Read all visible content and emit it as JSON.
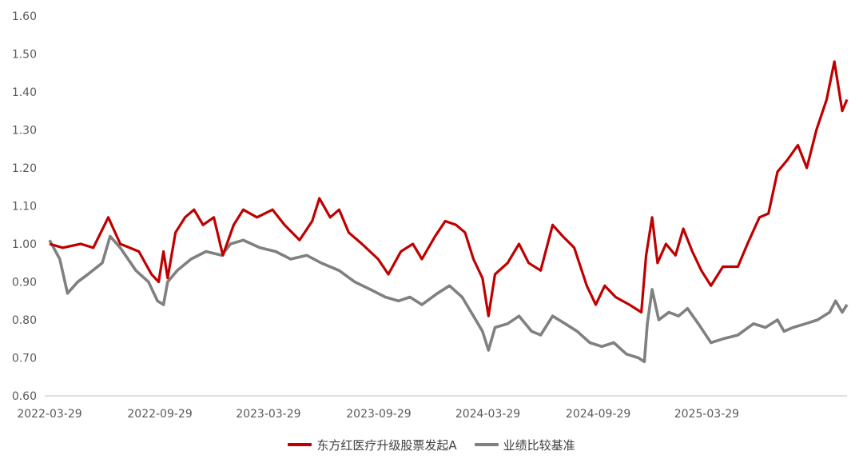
{
  "chart_data": {
    "type": "line",
    "ylim": [
      0.6,
      1.6
    ],
    "y_ticks": [
      "1.60",
      "1.50",
      "1.40",
      "1.30",
      "1.20",
      "1.10",
      "1.00",
      "0.90",
      "0.80",
      "0.70",
      "0.60"
    ],
    "x_ticks": [
      "2022-03-29",
      "2022-09-29",
      "2023-03-29",
      "2023-09-29",
      "2024-03-29",
      "2024-09-29",
      "2025-03-29"
    ],
    "legend_position": "bottom",
    "grid": false,
    "series": [
      {
        "name": "东方红医疗升级股票发起A",
        "color": "#c00000",
        "points": [
          [
            "2022-03-29",
            1.0
          ],
          [
            "2022-04-20",
            0.99
          ],
          [
            "2022-05-20",
            1.0
          ],
          [
            "2022-06-10",
            0.99
          ],
          [
            "2022-07-05",
            1.07
          ],
          [
            "2022-07-25",
            1.0
          ],
          [
            "2022-08-25",
            0.98
          ],
          [
            "2022-09-15",
            0.92
          ],
          [
            "2022-09-27",
            0.9
          ],
          [
            "2022-10-05",
            0.98
          ],
          [
            "2022-10-12",
            0.91
          ],
          [
            "2022-10-25",
            1.03
          ],
          [
            "2022-11-10",
            1.07
          ],
          [
            "2022-11-25",
            1.09
          ],
          [
            "2022-12-10",
            1.05
          ],
          [
            "2022-12-28",
            1.07
          ],
          [
            "2023-01-12",
            0.97
          ],
          [
            "2023-01-30",
            1.05
          ],
          [
            "2023-02-15",
            1.09
          ],
          [
            "2023-03-10",
            1.07
          ],
          [
            "2023-04-05",
            1.09
          ],
          [
            "2023-04-25",
            1.05
          ],
          [
            "2023-05-20",
            1.01
          ],
          [
            "2023-06-10",
            1.06
          ],
          [
            "2023-06-22",
            1.12
          ],
          [
            "2023-07-10",
            1.07
          ],
          [
            "2023-07-25",
            1.09
          ],
          [
            "2023-08-10",
            1.03
          ],
          [
            "2023-09-01",
            1.0
          ],
          [
            "2023-09-28",
            0.96
          ],
          [
            "2023-10-15",
            0.92
          ],
          [
            "2023-11-05",
            0.98
          ],
          [
            "2023-11-25",
            1.0
          ],
          [
            "2023-12-10",
            0.96
          ],
          [
            "2024-01-01",
            1.02
          ],
          [
            "2024-01-18",
            1.06
          ],
          [
            "2024-02-05",
            1.05
          ],
          [
            "2024-02-20",
            1.03
          ],
          [
            "2024-03-05",
            0.96
          ],
          [
            "2024-03-20",
            0.91
          ],
          [
            "2024-03-30",
            0.81
          ],
          [
            "2024-04-10",
            0.92
          ],
          [
            "2024-05-01",
            0.95
          ],
          [
            "2024-05-20",
            1.0
          ],
          [
            "2024-06-05",
            0.95
          ],
          [
            "2024-06-25",
            0.93
          ],
          [
            "2024-07-15",
            1.05
          ],
          [
            "2024-08-01",
            1.02
          ],
          [
            "2024-08-20",
            0.99
          ],
          [
            "2024-09-10",
            0.89
          ],
          [
            "2024-09-25",
            0.84
          ],
          [
            "2024-10-10",
            0.89
          ],
          [
            "2024-10-28",
            0.86
          ],
          [
            "2024-11-20",
            0.84
          ],
          [
            "2024-12-10",
            0.82
          ],
          [
            "2024-12-18",
            0.97
          ],
          [
            "2024-12-28",
            1.07
          ],
          [
            "2025-01-06",
            0.95
          ],
          [
            "2025-01-20",
            1.0
          ],
          [
            "2025-02-05",
            0.97
          ],
          [
            "2025-02-18",
            1.04
          ],
          [
            "2025-03-05",
            0.98
          ],
          [
            "2025-03-20",
            0.93
          ],
          [
            "2025-04-05",
            0.89
          ],
          [
            "2025-04-25",
            0.94
          ],
          [
            "2025-05-20",
            0.94
          ],
          [
            "2025-06-05",
            1.0
          ],
          [
            "2025-06-25",
            1.07
          ],
          [
            "2025-07-10",
            1.08
          ],
          [
            "2025-07-25",
            1.19
          ],
          [
            "2025-08-10",
            1.22
          ],
          [
            "2025-08-28",
            1.26
          ],
          [
            "2025-09-12",
            1.2
          ],
          [
            "2025-09-28",
            1.3
          ],
          [
            "2025-10-15",
            1.38
          ],
          [
            "2025-10-28",
            1.48
          ],
          [
            "2025-11-10",
            1.35
          ],
          [
            "2025-11-18",
            1.38
          ]
        ]
      },
      {
        "name": "业绩比较基准",
        "color": "#808080",
        "points": [
          [
            "2022-03-29",
            1.01
          ],
          [
            "2022-04-15",
            0.96
          ],
          [
            "2022-04-28",
            0.87
          ],
          [
            "2022-05-15",
            0.9
          ],
          [
            "2022-06-01",
            0.92
          ],
          [
            "2022-06-25",
            0.95
          ],
          [
            "2022-07-08",
            1.02
          ],
          [
            "2022-07-25",
            0.99
          ],
          [
            "2022-08-20",
            0.93
          ],
          [
            "2022-09-10",
            0.9
          ],
          [
            "2022-09-25",
            0.85
          ],
          [
            "2022-10-05",
            0.84
          ],
          [
            "2022-10-12",
            0.9
          ],
          [
            "2022-10-28",
            0.93
          ],
          [
            "2022-11-20",
            0.96
          ],
          [
            "2022-12-15",
            0.98
          ],
          [
            "2023-01-10",
            0.97
          ],
          [
            "2023-01-25",
            1.0
          ],
          [
            "2023-02-15",
            1.01
          ],
          [
            "2023-03-15",
            0.99
          ],
          [
            "2023-04-10",
            0.98
          ],
          [
            "2023-05-05",
            0.96
          ],
          [
            "2023-06-01",
            0.97
          ],
          [
            "2023-06-25",
            0.95
          ],
          [
            "2023-07-25",
            0.93
          ],
          [
            "2023-08-20",
            0.9
          ],
          [
            "2023-09-15",
            0.88
          ],
          [
            "2023-10-10",
            0.86
          ],
          [
            "2023-11-01",
            0.85
          ],
          [
            "2023-11-20",
            0.86
          ],
          [
            "2023-12-10",
            0.84
          ],
          [
            "2024-01-05",
            0.87
          ],
          [
            "2024-01-25",
            0.89
          ],
          [
            "2024-02-15",
            0.86
          ],
          [
            "2024-03-05",
            0.81
          ],
          [
            "2024-03-20",
            0.77
          ],
          [
            "2024-03-30",
            0.72
          ],
          [
            "2024-04-10",
            0.78
          ],
          [
            "2024-05-01",
            0.79
          ],
          [
            "2024-05-20",
            0.81
          ],
          [
            "2024-06-10",
            0.77
          ],
          [
            "2024-06-25",
            0.76
          ],
          [
            "2024-07-15",
            0.81
          ],
          [
            "2024-08-05",
            0.79
          ],
          [
            "2024-08-25",
            0.77
          ],
          [
            "2024-09-15",
            0.74
          ],
          [
            "2024-10-05",
            0.73
          ],
          [
            "2024-10-25",
            0.74
          ],
          [
            "2024-11-15",
            0.71
          ],
          [
            "2024-12-05",
            0.7
          ],
          [
            "2024-12-15",
            0.69
          ],
          [
            "2024-12-20",
            0.79
          ],
          [
            "2024-12-28",
            0.88
          ],
          [
            "2025-01-08",
            0.8
          ],
          [
            "2025-01-25",
            0.82
          ],
          [
            "2025-02-10",
            0.81
          ],
          [
            "2025-02-25",
            0.83
          ],
          [
            "2025-03-15",
            0.79
          ],
          [
            "2025-04-05",
            0.74
          ],
          [
            "2025-04-25",
            0.75
          ],
          [
            "2025-05-20",
            0.76
          ],
          [
            "2025-06-15",
            0.79
          ],
          [
            "2025-07-05",
            0.78
          ],
          [
            "2025-07-25",
            0.8
          ],
          [
            "2025-08-05",
            0.77
          ],
          [
            "2025-08-20",
            0.78
          ],
          [
            "2025-09-10",
            0.79
          ],
          [
            "2025-09-30",
            0.8
          ],
          [
            "2025-10-20",
            0.82
          ],
          [
            "2025-10-30",
            0.85
          ],
          [
            "2025-11-10",
            0.82
          ],
          [
            "2025-11-18",
            0.84
          ]
        ]
      }
    ]
  }
}
